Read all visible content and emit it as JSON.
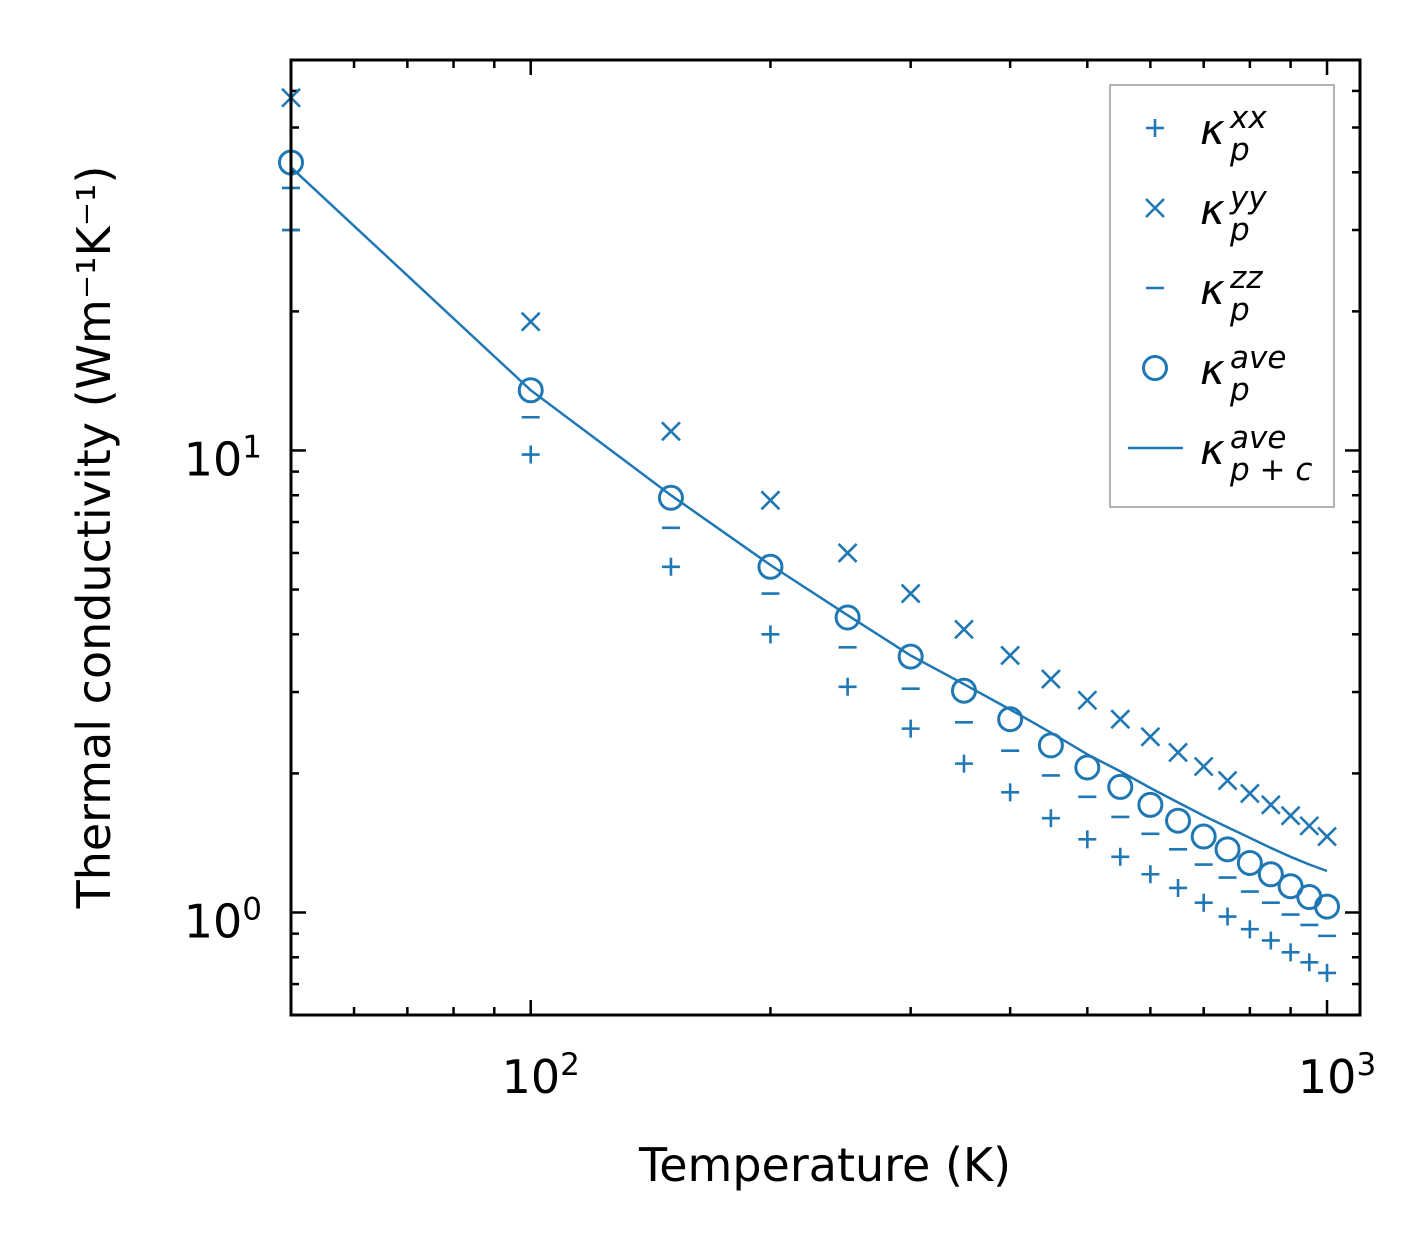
{
  "chart_data": {
    "type": "scatter",
    "xscale": "log",
    "yscale": "log",
    "xlim": [
      50,
      1100
    ],
    "ylim": [
      0.6,
      70
    ],
    "xlabel": "Temperature (K)",
    "ylabel": "Thermal conductivity (Wm⁻¹K⁻¹)",
    "color": "#1f77b4",
    "x_ticks": [
      {
        "base": "10",
        "exp": "2"
      },
      {
        "base": "10",
        "exp": "3"
      }
    ],
    "y_ticks": [
      {
        "base": "10",
        "exp": "0"
      },
      {
        "base": "10",
        "exp": "1"
      }
    ],
    "x": [
      50,
      100,
      150,
      200,
      250,
      300,
      350,
      400,
      450,
      500,
      550,
      600,
      650,
      700,
      750,
      800,
      850,
      900,
      950,
      1000
    ],
    "series": [
      {
        "name": "κ_p^xx",
        "base": "κ",
        "sub": "p",
        "sup": "xx",
        "marker": "plus",
        "values": [
          30.0,
          9.8,
          5.6,
          4.0,
          3.08,
          2.5,
          2.1,
          1.82,
          1.6,
          1.44,
          1.32,
          1.21,
          1.13,
          1.05,
          0.98,
          0.92,
          0.87,
          0.82,
          0.78,
          0.74
        ]
      },
      {
        "name": "κ_p^yy",
        "base": "κ",
        "sub": "p",
        "sup": "yy",
        "marker": "x",
        "values": [
          58.0,
          19.0,
          11.0,
          7.8,
          6.0,
          4.9,
          4.1,
          3.6,
          3.2,
          2.88,
          2.62,
          2.4,
          2.22,
          2.07,
          1.93,
          1.81,
          1.71,
          1.62,
          1.54,
          1.46
        ]
      },
      {
        "name": "κ_p^zz",
        "base": "κ",
        "sub": "p",
        "sup": "zz",
        "marker": "hline",
        "values": [
          37.0,
          11.8,
          6.8,
          4.9,
          3.75,
          3.05,
          2.58,
          2.24,
          1.98,
          1.78,
          1.61,
          1.48,
          1.37,
          1.27,
          1.19,
          1.11,
          1.05,
          0.99,
          0.94,
          0.89
        ]
      },
      {
        "name": "κ_p^ave",
        "base": "κ",
        "sub": "p",
        "sup": "ave",
        "marker": "circle",
        "values": [
          42.0,
          13.5,
          7.9,
          5.6,
          4.35,
          3.58,
          3.02,
          2.62,
          2.3,
          2.06,
          1.87,
          1.71,
          1.58,
          1.46,
          1.37,
          1.28,
          1.21,
          1.14,
          1.08,
          1.03
        ]
      },
      {
        "name": "κ_p+c^ave",
        "base": "κ",
        "sub": "p + c",
        "sup": "ave",
        "marker": "line",
        "values": [
          41.0,
          13.5,
          8.0,
          5.65,
          4.4,
          3.6,
          3.12,
          2.75,
          2.45,
          2.2,
          2.02,
          1.86,
          1.73,
          1.62,
          1.53,
          1.45,
          1.38,
          1.32,
          1.27,
          1.23
        ]
      }
    ]
  }
}
